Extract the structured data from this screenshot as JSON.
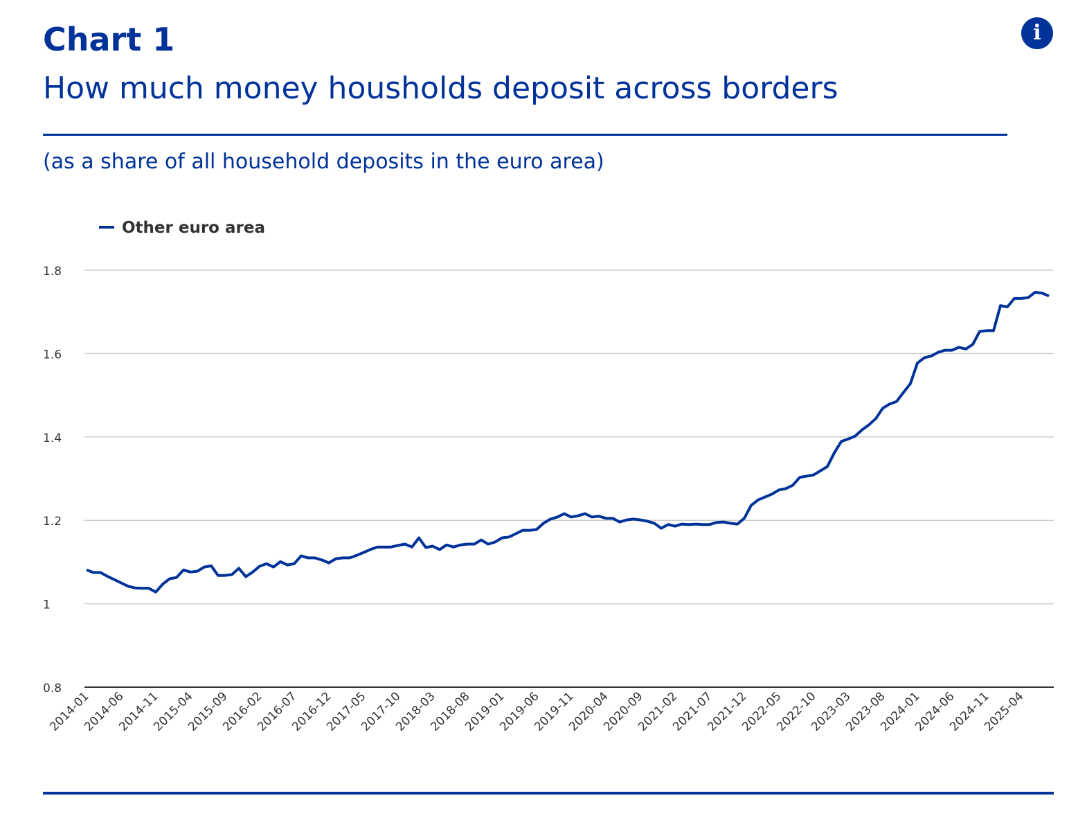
{
  "header": {
    "title": "Chart 1",
    "subtitle": "How much money housholds deposit across borders",
    "unit_note": "(as a share of all household deposits in the euro area)",
    "info_icon": "info-icon"
  },
  "colors": {
    "brand": "#003299",
    "series": "#003299",
    "grid": "#cccccc"
  },
  "chart_data": {
    "type": "line",
    "title": "How much money housholds deposit across borders",
    "ylabel": "(as a share of all household deposits in the euro area)",
    "xlabel": "",
    "x_start": "2014-01",
    "x_end": "2025-08",
    "x_frequency": "monthly",
    "ylim": [
      0.8,
      1.8
    ],
    "y_ticks": [
      0.8,
      1,
      1.2,
      1.4,
      1.6,
      1.8
    ],
    "y_tick_labels": [
      "0.8",
      "1",
      "1.2",
      "1.4",
      "1.6",
      "1.8"
    ],
    "x_tick_labels": [
      "2014-01",
      "2014-06",
      "2014-11",
      "2015-04",
      "2015-09",
      "2016-02",
      "2016-07",
      "2016-12",
      "2017-05",
      "2017-10",
      "2018-03",
      "2018-08",
      "2019-01",
      "2019-06",
      "2019-11",
      "2020-04",
      "2020-09",
      "2021-02",
      "2021-07",
      "2021-12",
      "2022-05",
      "2022-10",
      "2023-03",
      "2023-08",
      "2024-01",
      "2024-06",
      "2024-11",
      "2025-04"
    ],
    "grid": true,
    "legend": {
      "position": "top-left",
      "entries": [
        "Other euro area"
      ]
    },
    "series": [
      {
        "name": "Other euro area",
        "values": [
          1.081,
          1.075,
          1.075,
          1.066,
          1.058,
          1.05,
          1.042,
          1.038,
          1.037,
          1.037,
          1.028,
          1.047,
          1.06,
          1.063,
          1.081,
          1.076,
          1.078,
          1.088,
          1.091,
          1.068,
          1.068,
          1.07,
          1.085,
          1.065,
          1.076,
          1.09,
          1.096,
          1.088,
          1.101,
          1.093,
          1.096,
          1.115,
          1.11,
          1.11,
          1.105,
          1.098,
          1.108,
          1.11,
          1.11,
          1.116,
          1.123,
          1.13,
          1.136,
          1.136,
          1.136,
          1.14,
          1.143,
          1.136,
          1.158,
          1.135,
          1.138,
          1.13,
          1.141,
          1.136,
          1.141,
          1.143,
          1.143,
          1.153,
          1.143,
          1.148,
          1.158,
          1.16,
          1.168,
          1.176,
          1.176,
          1.178,
          1.193,
          1.203,
          1.208,
          1.216,
          1.208,
          1.211,
          1.216,
          1.208,
          1.21,
          1.205,
          1.205,
          1.196,
          1.201,
          1.203,
          1.201,
          1.198,
          1.193,
          1.181,
          1.19,
          1.186,
          1.191,
          1.19,
          1.191,
          1.19,
          1.19,
          1.195,
          1.196,
          1.193,
          1.191,
          1.205,
          1.236,
          1.249,
          1.256,
          1.263,
          1.273,
          1.276,
          1.284,
          1.303,
          1.306,
          1.309,
          1.319,
          1.329,
          1.362,
          1.389,
          1.395,
          1.402,
          1.417,
          1.429,
          1.444,
          1.469,
          1.479,
          1.485,
          1.507,
          1.528,
          1.577,
          1.59,
          1.594,
          1.603,
          1.608,
          1.608,
          1.615,
          1.611,
          1.622,
          1.653,
          1.655,
          1.655,
          1.715,
          1.712,
          1.732,
          1.732,
          1.734,
          1.747,
          1.745,
          1.738
        ]
      }
    ]
  }
}
